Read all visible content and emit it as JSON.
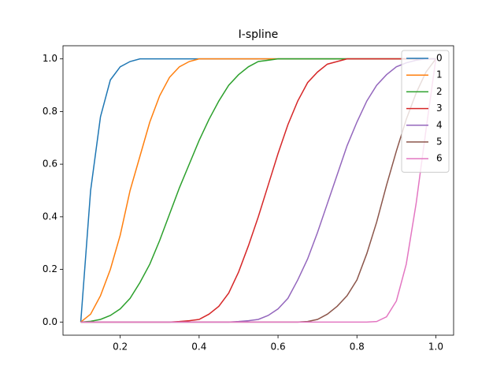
{
  "chart_data": {
    "type": "line",
    "title": "I-spline",
    "x": [
      0.1,
      0.125,
      0.15,
      0.175,
      0.2,
      0.225,
      0.25,
      0.275,
      0.3,
      0.325,
      0.35,
      0.375,
      0.4,
      0.425,
      0.45,
      0.475,
      0.5,
      0.525,
      0.55,
      0.575,
      0.6,
      0.625,
      0.65,
      0.675,
      0.7,
      0.725,
      0.75,
      0.775,
      0.8,
      0.825,
      0.85,
      0.875,
      0.9,
      0.925,
      0.95,
      0.975,
      1.0
    ],
    "series": [
      {
        "name": "0",
        "color": "#1f77b4",
        "values": [
          0,
          0.5,
          0.78,
          0.92,
          0.97,
          0.99,
          1,
          1,
          1,
          1,
          1,
          1,
          1,
          1,
          1,
          1,
          1,
          1,
          1,
          1,
          1,
          1,
          1,
          1,
          1,
          1,
          1,
          1,
          1,
          1,
          1,
          1,
          1,
          1,
          1,
          1,
          1
        ]
      },
      {
        "name": "1",
        "color": "#ff7f0e",
        "values": [
          0,
          0.03,
          0.1,
          0.2,
          0.33,
          0.5,
          0.63,
          0.76,
          0.86,
          0.93,
          0.97,
          0.99,
          1,
          1,
          1,
          1,
          1,
          1,
          1,
          1,
          1,
          1,
          1,
          1,
          1,
          1,
          1,
          1,
          1,
          1,
          1,
          1,
          1,
          1,
          1,
          1,
          1
        ]
      },
      {
        "name": "2",
        "color": "#2ca02c",
        "values": [
          0,
          0.003,
          0.01,
          0.025,
          0.05,
          0.09,
          0.15,
          0.22,
          0.31,
          0.41,
          0.51,
          0.6,
          0.69,
          0.77,
          0.84,
          0.9,
          0.94,
          0.97,
          0.99,
          0.995,
          1,
          1,
          1,
          1,
          1,
          1,
          1,
          1,
          1,
          1,
          1,
          1,
          1,
          1,
          1,
          1,
          1
        ]
      },
      {
        "name": "3",
        "color": "#d62728",
        "values": [
          0,
          0,
          0,
          0,
          0,
          0,
          0,
          0,
          0,
          0,
          0.002,
          0.005,
          0.01,
          0.03,
          0.06,
          0.11,
          0.19,
          0.29,
          0.4,
          0.52,
          0.64,
          0.75,
          0.84,
          0.91,
          0.95,
          0.98,
          0.99,
          1,
          1,
          1,
          1,
          1,
          1,
          1,
          1,
          1,
          1
        ]
      },
      {
        "name": "4",
        "color": "#9467bd",
        "values": [
          0,
          0,
          0,
          0,
          0,
          0,
          0,
          0,
          0,
          0,
          0,
          0,
          0,
          0,
          0,
          0,
          0.002,
          0.005,
          0.01,
          0.025,
          0.05,
          0.09,
          0.16,
          0.24,
          0.34,
          0.45,
          0.56,
          0.67,
          0.76,
          0.84,
          0.9,
          0.94,
          0.97,
          0.985,
          0.995,
          1,
          1
        ]
      },
      {
        "name": "5",
        "color": "#8c564b",
        "values": [
          0,
          0,
          0,
          0,
          0,
          0,
          0,
          0,
          0,
          0,
          0,
          0,
          0,
          0,
          0,
          0,
          0,
          0,
          0,
          0,
          0,
          0,
          0,
          0.002,
          0.01,
          0.03,
          0.06,
          0.1,
          0.16,
          0.26,
          0.38,
          0.52,
          0.65,
          0.77,
          0.87,
          0.95,
          1
        ]
      },
      {
        "name": "6",
        "color": "#e377c2",
        "values": [
          0,
          0,
          0,
          0,
          0,
          0,
          0,
          0,
          0,
          0,
          0,
          0,
          0,
          0,
          0,
          0,
          0,
          0,
          0,
          0,
          0,
          0,
          0,
          0,
          0,
          0,
          0,
          0,
          0,
          0,
          0.002,
          0.02,
          0.08,
          0.22,
          0.45,
          0.73,
          1
        ]
      }
    ],
    "xlim": [
      0.055,
      1.045
    ],
    "xticks": [
      0.2,
      0.4,
      0.6,
      0.8,
      {
        "value": 1,
        "label": "1.0"
      }
    ],
    "ylim": [
      -0.05,
      1.05
    ],
    "yticks": [
      {
        "value": 0,
        "label": "0.0"
      },
      0.2,
      0.4,
      0.6,
      0.8,
      {
        "value": 1,
        "label": "1.0"
      }
    ],
    "legend": "upper right"
  }
}
